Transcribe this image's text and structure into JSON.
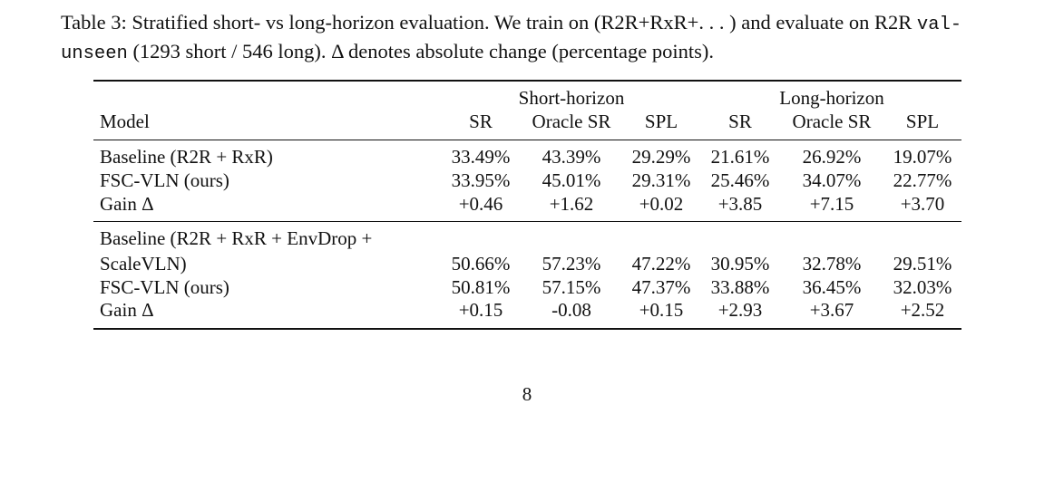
{
  "caption": {
    "part1": "Table 3: Stratified short- vs long-horizon evaluation. We train on (R2R+RxR+. . . ) and evaluate on R2R ",
    "code": "val-unseen",
    "part2": " (1293 short / 546 long). Δ denotes absolute change (percentage points)."
  },
  "table": {
    "group_headers": [
      "Short-horizon",
      "Long-horizon"
    ],
    "col_headers": [
      "Model",
      "SR",
      "Oracle SR",
      "SPL",
      "SR",
      "Oracle SR",
      "SPL"
    ],
    "block1": [
      {
        "model": "Baseline (R2R + RxR)",
        "values": [
          "33.49%",
          "43.39%",
          "29.29%",
          "21.61%",
          "26.92%",
          "19.07%"
        ]
      },
      {
        "model": "FSC-VLN (ours)",
        "values": [
          "33.95%",
          "45.01%",
          "29.31%",
          "25.46%",
          "34.07%",
          "22.77%"
        ]
      },
      {
        "model": "Gain Δ",
        "values": [
          "+0.46",
          "+1.62",
          "+0.02",
          "+3.85",
          "+7.15",
          "+3.70"
        ]
      }
    ],
    "block2_model_line1": "Baseline (R2R + RxR + EnvDrop +",
    "block2": [
      {
        "model": "ScaleVLN)",
        "values": [
          "50.66%",
          "57.23%",
          "47.22%",
          "30.95%",
          "32.78%",
          "29.51%"
        ]
      },
      {
        "model": "FSC-VLN (ours)",
        "values": [
          "50.81%",
          "57.15%",
          "47.37%",
          "33.88%",
          "36.45%",
          "32.03%"
        ]
      },
      {
        "model": "Gain Δ",
        "values": [
          "+0.15",
          "-0.08",
          "+0.15",
          "+2.93",
          "+3.67",
          "+2.52"
        ]
      }
    ]
  },
  "page_number": "8"
}
